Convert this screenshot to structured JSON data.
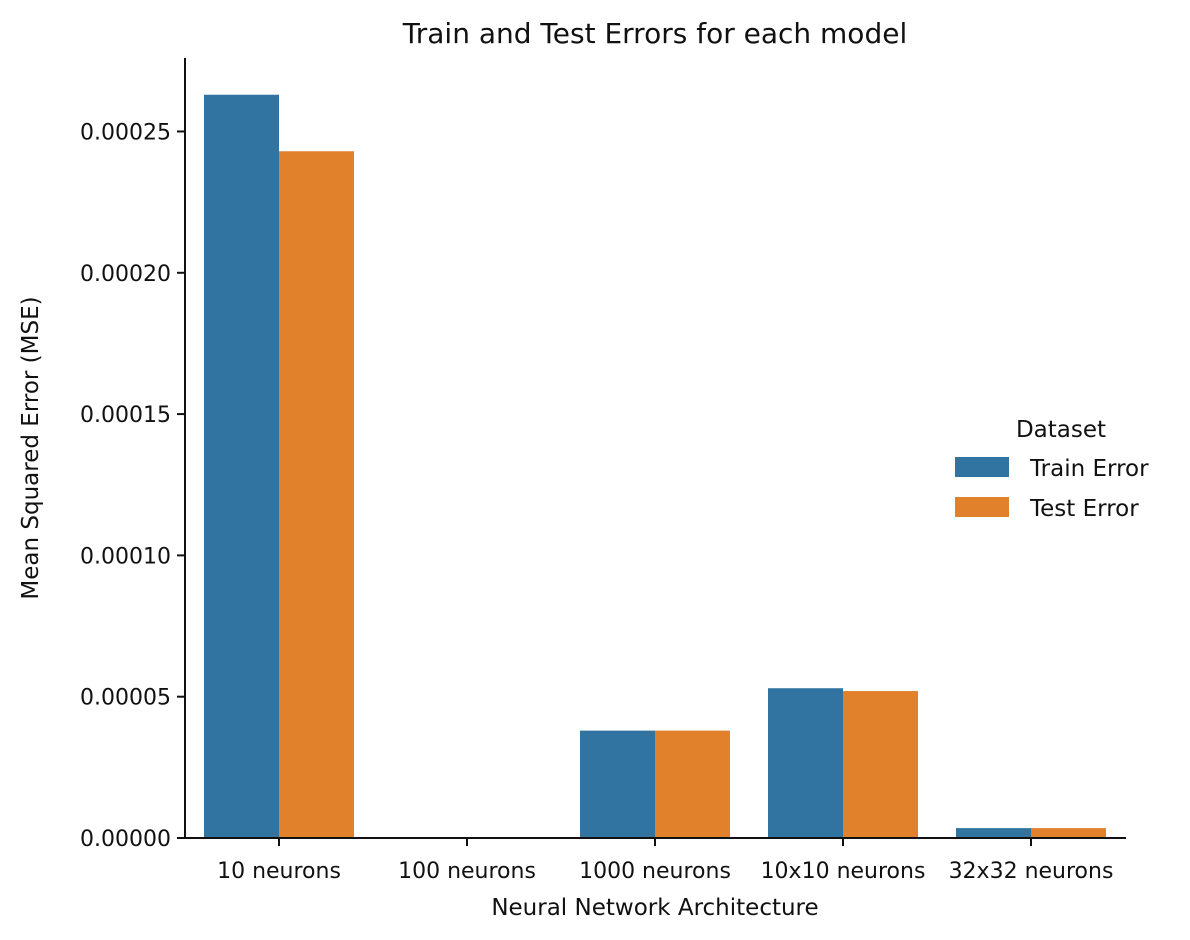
{
  "chart_data": {
    "type": "bar",
    "title": "Train and Test Errors for each model",
    "xlabel": "Neural Network Architecture",
    "ylabel": "Mean Squared Error (MSE)",
    "categories": [
      "10 neurons",
      "100 neurons",
      "1000 neurons",
      "10x10 neurons",
      "32x32 neurons"
    ],
    "series": [
      {
        "name": "Train Error",
        "color": "#3274a1",
        "values": [
          0.000263,
          0.0,
          3.8e-05,
          5.3e-05,
          3.5e-06
        ]
      },
      {
        "name": "Test Error",
        "color": "#e1812c",
        "values": [
          0.000243,
          0.0,
          3.8e-05,
          5.2e-05,
          3.5e-06
        ]
      }
    ],
    "ylim": [
      0,
      0.000276
    ],
    "yticks": [
      0,
      5e-05,
      0.0001,
      0.00015,
      0.0002,
      0.00025
    ],
    "ytick_labels": [
      "0.00000",
      "0.00005",
      "0.00010",
      "0.00015",
      "0.00020",
      "0.00025"
    ],
    "legend": {
      "title": "Dataset",
      "placement": "right"
    },
    "grid": false
  }
}
